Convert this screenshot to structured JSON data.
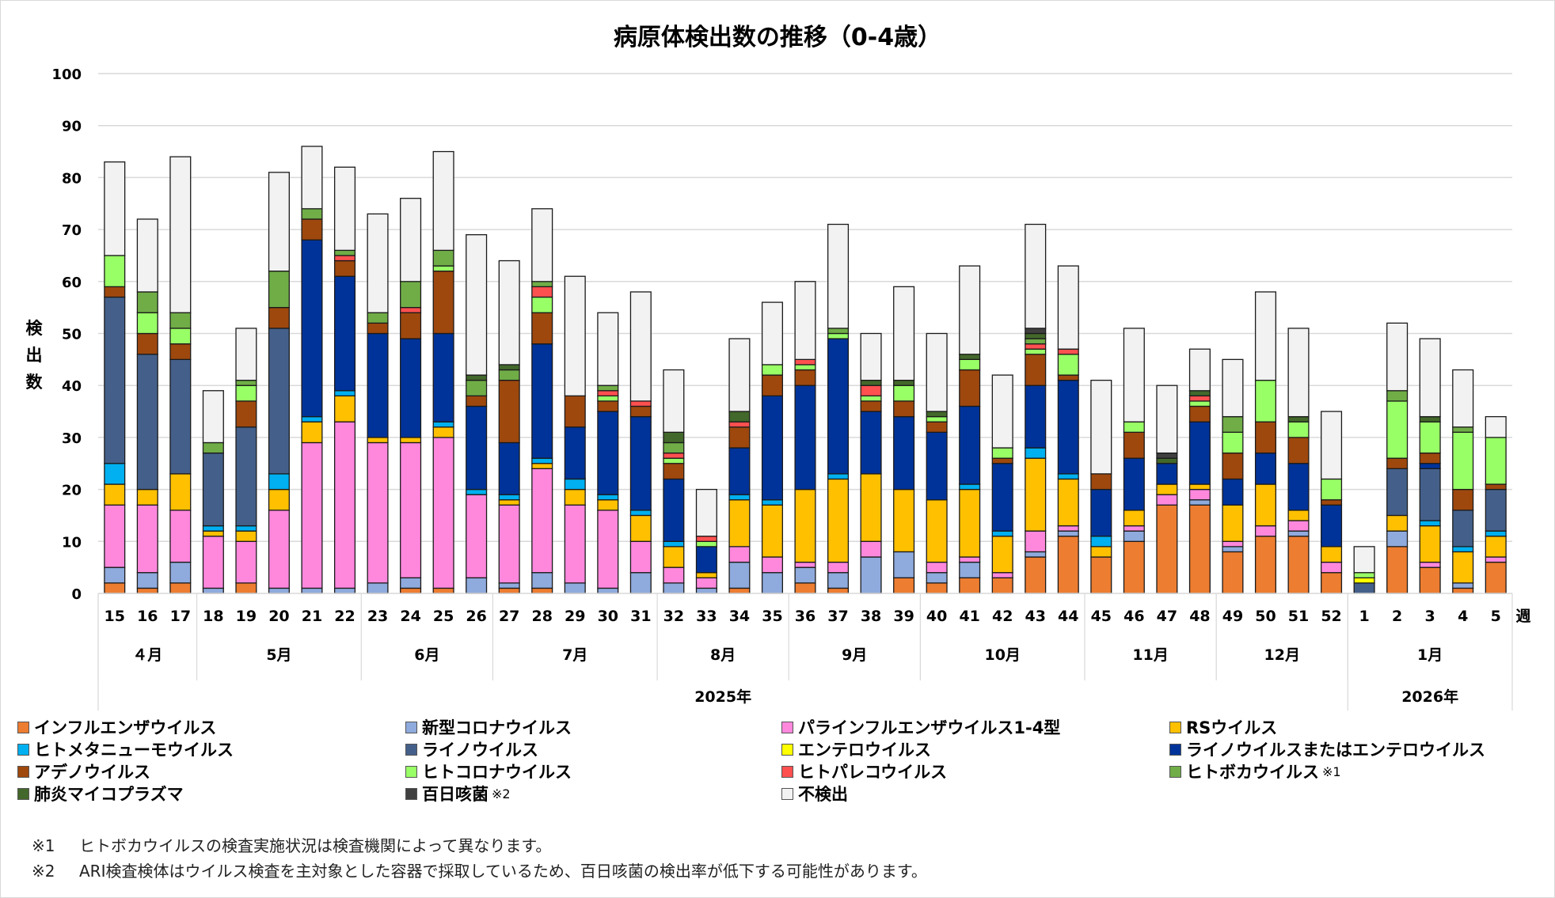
{
  "chart_data": {
    "type": "bar",
    "stacked": true,
    "title": "病原体検出数の推移（0-4歳）",
    "ylabel": "検出数",
    "xlabel": "週",
    "ylim": [
      0,
      100
    ],
    "yticks": [
      0,
      10,
      20,
      30,
      40,
      50,
      60,
      70,
      80,
      90,
      100
    ],
    "grid": true,
    "legend_position": "bottom",
    "categories": [
      "15",
      "16",
      "17",
      "18",
      "19",
      "20",
      "21",
      "22",
      "23",
      "24",
      "25",
      "26",
      "27",
      "28",
      "29",
      "30",
      "31",
      "32",
      "33",
      "34",
      "35",
      "36",
      "37",
      "38",
      "39",
      "40",
      "41",
      "42",
      "43",
      "44",
      "45",
      "46",
      "47",
      "48",
      "49",
      "50",
      "51",
      "52",
      "1",
      "2",
      "3",
      "4",
      "5"
    ],
    "months": [
      {
        "label": "４月",
        "weeks": 3
      },
      {
        "label": "5月",
        "weeks": 5
      },
      {
        "label": "6月",
        "weeks": 4
      },
      {
        "label": "7月",
        "weeks": 5
      },
      {
        "label": "8月",
        "weeks": 4
      },
      {
        "label": "9月",
        "weeks": 4
      },
      {
        "label": "10月",
        "weeks": 5
      },
      {
        "label": "11月",
        "weeks": 4
      },
      {
        "label": "12月",
        "weeks": 4
      },
      {
        "label": "1月",
        "weeks": 5
      }
    ],
    "years": [
      {
        "label": "2025年",
        "weeks": 38
      },
      {
        "label": "2026年",
        "weeks": 5
      }
    ],
    "series": [
      {
        "name": "インフルエンザウイルス",
        "color": "#ED7D31",
        "values": [
          2,
          1,
          2,
          0,
          2,
          0,
          0,
          0,
          0,
          1,
          1,
          0,
          1,
          1,
          0,
          0,
          0,
          0,
          0,
          1,
          0,
          2,
          1,
          0,
          3,
          2,
          3,
          3,
          7,
          11,
          7,
          10,
          17,
          17,
          8,
          11,
          11,
          4,
          0,
          9,
          5,
          1,
          6
        ]
      },
      {
        "name": "新型コロナウイルス",
        "color": "#8FAADC",
        "values": [
          3,
          3,
          4,
          1,
          0,
          1,
          1,
          1,
          2,
          2,
          0,
          3,
          1,
          3,
          2,
          1,
          4,
          2,
          1,
          5,
          4,
          3,
          3,
          7,
          5,
          2,
          3,
          0,
          1,
          1,
          0,
          2,
          0,
          1,
          1,
          0,
          1,
          0,
          0,
          3,
          0,
          1,
          0
        ]
      },
      {
        "name": "パラインフルエンザウイルス1-4型",
        "color": "#FF88DD",
        "values": [
          12,
          13,
          10,
          10,
          8,
          15,
          28,
          32,
          27,
          26,
          29,
          16,
          15,
          20,
          15,
          15,
          6,
          3,
          2,
          3,
          3,
          1,
          2,
          3,
          0,
          2,
          1,
          1,
          4,
          1,
          0,
          1,
          2,
          2,
          1,
          2,
          2,
          2,
          0,
          0,
          1,
          0,
          1
        ]
      },
      {
        "name": "RSウイルス",
        "color": "#FFC000",
        "values": [
          4,
          3,
          7,
          1,
          2,
          4,
          4,
          5,
          1,
          1,
          2,
          0,
          1,
          1,
          3,
          2,
          5,
          4,
          1,
          9,
          10,
          14,
          16,
          13,
          12,
          12,
          13,
          7,
          14,
          9,
          2,
          3,
          2,
          1,
          7,
          8,
          2,
          3,
          0,
          3,
          7,
          6,
          4
        ]
      },
      {
        "name": "ヒトメタニューモウイルス",
        "color": "#00B0F0",
        "values": [
          4,
          0,
          0,
          1,
          1,
          3,
          1,
          1,
          0,
          0,
          1,
          1,
          1,
          1,
          2,
          1,
          1,
          1,
          0,
          1,
          1,
          0,
          1,
          0,
          0,
          0,
          1,
          1,
          2,
          1,
          2,
          0,
          0,
          0,
          0,
          0,
          0,
          0,
          0,
          0,
          1,
          1,
          1
        ]
      },
      {
        "name": "ライノウイルス",
        "color": "#44608A",
        "values": [
          32,
          26,
          22,
          14,
          19,
          28,
          0,
          0,
          0,
          0,
          0,
          0,
          0,
          0,
          0,
          0,
          0,
          0,
          0,
          0,
          0,
          0,
          0,
          0,
          0,
          0,
          0,
          0,
          0,
          0,
          0,
          0,
          0,
          0,
          0,
          0,
          0,
          0,
          2,
          9,
          10,
          7,
          8
        ]
      },
      {
        "name": "エンテロウイルス",
        "color": "#FFFF00",
        "values": [
          0,
          0,
          0,
          0,
          0,
          0,
          0,
          0,
          0,
          0,
          0,
          0,
          0,
          0,
          0,
          0,
          0,
          0,
          0,
          0,
          0,
          0,
          0,
          0,
          0,
          0,
          0,
          0,
          0,
          0,
          0,
          0,
          0,
          0,
          0,
          0,
          0,
          0,
          1,
          0,
          0,
          0,
          0
        ]
      },
      {
        "name": "ライノウイルスまたはエンテロウイルス",
        "color": "#003399",
        "values": [
          0,
          0,
          0,
          0,
          0,
          0,
          34,
          22,
          20,
          19,
          17,
          16,
          10,
          22,
          10,
          16,
          18,
          12,
          5,
          9,
          20,
          20,
          26,
          12,
          14,
          13,
          15,
          13,
          12,
          18,
          9,
          10,
          4,
          12,
          5,
          6,
          9,
          8,
          0,
          0,
          1,
          0,
          0
        ]
      },
      {
        "name": "アデノウイルス",
        "color": "#9E480E",
        "values": [
          2,
          4,
          3,
          0,
          5,
          4,
          4,
          3,
          2,
          5,
          12,
          2,
          12,
          6,
          6,
          2,
          2,
          3,
          0,
          4,
          4,
          3,
          0,
          2,
          3,
          2,
          7,
          1,
          6,
          1,
          3,
          5,
          0,
          3,
          5,
          6,
          5,
          1,
          0,
          2,
          2,
          4,
          1
        ]
      },
      {
        "name": "ヒトコロナウイルス",
        "color": "#99FF66",
        "values": [
          6,
          4,
          3,
          0,
          3,
          0,
          0,
          0,
          0,
          0,
          1,
          0,
          0,
          3,
          0,
          1,
          0,
          1,
          1,
          0,
          2,
          1,
          1,
          1,
          3,
          1,
          2,
          2,
          1,
          4,
          0,
          2,
          0,
          1,
          4,
          8,
          3,
          4,
          1,
          11,
          6,
          11,
          9
        ]
      },
      {
        "name": "ヒトパレコウイルス",
        "color": "#FF5050",
        "values": [
          0,
          0,
          0,
          0,
          0,
          0,
          0,
          1,
          0,
          1,
          0,
          0,
          0,
          2,
          0,
          1,
          1,
          1,
          1,
          1,
          0,
          1,
          0,
          2,
          0,
          0,
          0,
          0,
          1,
          1,
          0,
          0,
          0,
          1,
          0,
          0,
          0,
          0,
          0,
          0,
          0,
          0,
          0
        ]
      },
      {
        "name": "ヒトボカウイルス",
        "color": "#70AD47",
        "values": [
          0,
          4,
          3,
          2,
          1,
          7,
          2,
          1,
          2,
          5,
          3,
          3,
          2,
          1,
          0,
          1,
          0,
          2,
          0,
          0,
          0,
          0,
          1,
          0,
          0,
          0,
          0,
          0,
          1,
          0,
          0,
          0,
          0,
          0,
          3,
          0,
          0,
          0,
          0,
          2,
          0,
          1,
          0
        ]
      },
      {
        "name": "肺炎マイコプラズマ",
        "color": "#43682B",
        "values": [
          0,
          0,
          0,
          0,
          0,
          0,
          0,
          0,
          0,
          0,
          0,
          1,
          1,
          0,
          0,
          0,
          0,
          2,
          0,
          2,
          0,
          0,
          0,
          1,
          1,
          1,
          1,
          0,
          1,
          0,
          0,
          0,
          1,
          1,
          0,
          0,
          1,
          0,
          0,
          0,
          1,
          0,
          0
        ]
      },
      {
        "name": "百日咳菌",
        "color": "#404040",
        "values": [
          0,
          0,
          0,
          0,
          0,
          0,
          0,
          0,
          0,
          0,
          0,
          0,
          0,
          0,
          0,
          0,
          0,
          0,
          0,
          0,
          0,
          0,
          0,
          0,
          0,
          0,
          0,
          0,
          1,
          0,
          0,
          0,
          1,
          0,
          0,
          0,
          0,
          0,
          0,
          0,
          0,
          0,
          0
        ]
      },
      {
        "name": "不検出",
        "color": "#F2F2F2",
        "values": [
          18,
          14,
          30,
          10,
          10,
          19,
          12,
          16,
          19,
          16,
          19,
          27,
          20,
          14,
          23,
          14,
          21,
          12,
          9,
          14,
          12,
          15,
          20,
          9,
          18,
          15,
          17,
          14,
          20,
          16,
          18,
          18,
          13,
          8,
          11,
          17,
          17,
          13,
          5,
          13,
          15,
          11,
          4
        ]
      }
    ]
  },
  "legend": [
    {
      "label": "インフルエンザウイルス",
      "color": "#ED7D31",
      "note": ""
    },
    {
      "label": "新型コロナウイルス",
      "color": "#8FAADC",
      "note": ""
    },
    {
      "label": "パラインフルエンザウイルス1-4型",
      "color": "#FF88DD",
      "note": ""
    },
    {
      "label": "RSウイルス",
      "color": "#FFC000",
      "note": ""
    },
    {
      "label": "ヒトメタニューモウイルス",
      "color": "#00B0F0",
      "note": ""
    },
    {
      "label": "ライノウイルス",
      "color": "#44608A",
      "note": ""
    },
    {
      "label": "エンテロウイルス",
      "color": "#FFFF00",
      "note": ""
    },
    {
      "label": "ライノウイルスまたはエンテロウイルス",
      "color": "#003399",
      "note": ""
    },
    {
      "label": "アデノウイルス",
      "color": "#9E480E",
      "note": ""
    },
    {
      "label": "ヒトコロナウイルス",
      "color": "#99FF66",
      "note": ""
    },
    {
      "label": "ヒトパレコウイルス",
      "color": "#FF5050",
      "note": ""
    },
    {
      "label": "ヒトボカウイルス",
      "color": "#70AD47",
      "note": "※1"
    },
    {
      "label": "肺炎マイコプラズマ",
      "color": "#43682B",
      "note": ""
    },
    {
      "label": "百日咳菌",
      "color": "#404040",
      "note": "※2"
    },
    {
      "label": "不検出",
      "color": "#F2F2F2",
      "note": ""
    }
  ],
  "ylabel_chars": [
    "検",
    "出",
    "数"
  ],
  "footnotes": [
    {
      "mark": "※1",
      "text": "ヒトボカウイルスの検査実施状況は検査機関によって異なります。"
    },
    {
      "mark": "※2",
      "text": "ARI検査検体はウイルス検査を主対象とした容器で採取しているため、百日咳菌の検出率が低下する可能性があります。"
    }
  ]
}
